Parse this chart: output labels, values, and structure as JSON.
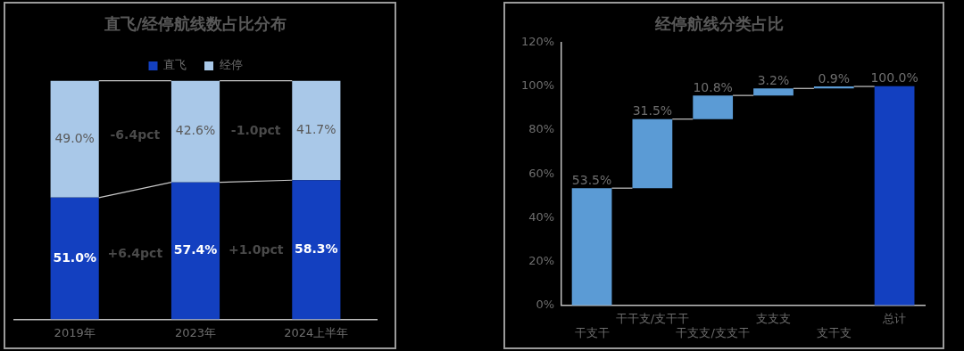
{
  "chart_data": [
    {
      "type": "bar",
      "title": "直飞/经停航线数占比分布",
      "stacked": true,
      "categories": [
        "2019年",
        "2023年",
        "2024上半年"
      ],
      "series": [
        {
          "name": "直飞",
          "color": "#1340c0",
          "values": [
            51.0,
            57.4,
            58.3
          ],
          "value_labels": [
            "51.0%",
            "57.4%",
            "58.3%"
          ]
        },
        {
          "name": "经停",
          "color": "#a9c8e8",
          "values": [
            49.0,
            42.6,
            41.7
          ],
          "value_labels": [
            "49.0%",
            "42.6%",
            "41.7%"
          ]
        }
      ],
      "annotations": [
        "-6.4pct",
        "+6.4pct",
        "-1.0pct",
        "+1.0pct"
      ],
      "legend": "top",
      "grid": false,
      "tick_labels": "x"
    },
    {
      "type": "bar",
      "title": "经停航线分类占比",
      "categories": [
        "干支干",
        "干干支/支干干",
        "干支支/支支干",
        "支支支",
        "支干支",
        "总计"
      ],
      "values": [
        53.5,
        31.5,
        10.8,
        3.2,
        0.9,
        100.0
      ],
      "base": [
        0,
        53.5,
        85.0,
        95.8,
        99.0,
        0
      ],
      "value_labels": [
        "53.5%",
        "31.5%",
        "10.8%",
        "3.2%",
        "0.9%",
        "100.0%"
      ],
      "colors": [
        "#5b9bd5",
        "#5b9bd5",
        "#5b9bd5",
        "#5b9bd5",
        "#5b9bd5",
        "#1340c0"
      ],
      "ylim": [
        0,
        120
      ],
      "yticks": [
        {
          "value": 0,
          "label": "0%"
        },
        {
          "value": 20,
          "label": "20%"
        },
        {
          "value": 40,
          "label": "40%"
        },
        {
          "value": 60,
          "label": "60%"
        },
        {
          "value": 80,
          "label": "80%"
        },
        {
          "value": 100,
          "label": "100%"
        },
        {
          "value": 120,
          "label": "120%"
        }
      ],
      "grid": false,
      "legend": false
    }
  ]
}
